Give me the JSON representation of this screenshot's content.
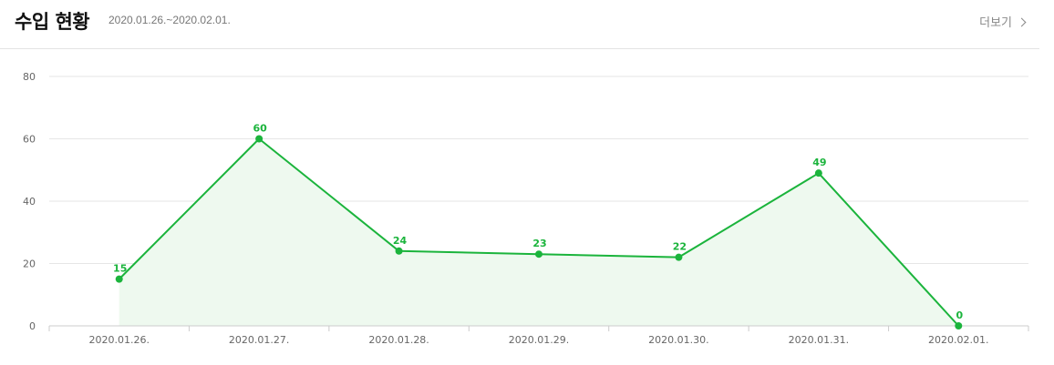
{
  "header": {
    "title": "수입 현황",
    "period": "2020.01.26.~2020.02.01.",
    "more_label": "더보기",
    "more_icon": "chevron-right-icon"
  },
  "colors": {
    "line": "#1bb43c",
    "area": "#eef9ef",
    "grid": "#e6e6e6",
    "axis": "#cccccc"
  },
  "chart_data": {
    "type": "area",
    "title": "",
    "xlabel": "",
    "ylabel": "",
    "categories": [
      "2020.01.26.",
      "2020.01.27.",
      "2020.01.28.",
      "2020.01.29.",
      "2020.01.30.",
      "2020.01.31.",
      "2020.02.01."
    ],
    "values": [
      15,
      60,
      24,
      23,
      22,
      49,
      0
    ],
    "ylim": [
      0,
      80
    ],
    "yticks": [
      0,
      20,
      40,
      60,
      80
    ],
    "grid": true,
    "data_labels": true
  }
}
